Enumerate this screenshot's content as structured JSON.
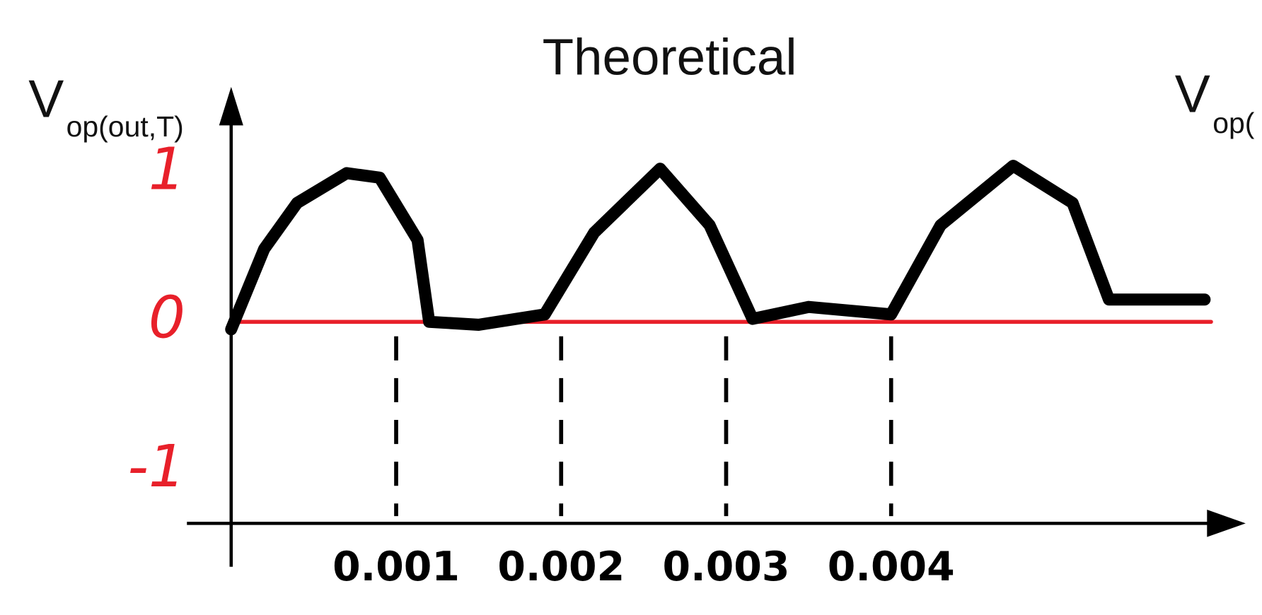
{
  "chart_data": {
    "type": "line",
    "title": "Theoretical",
    "y_label": {
      "main": "V",
      "sub": "op(out,T)"
    },
    "right_label": {
      "main": "V",
      "sub": "op("
    },
    "x": [
      0,
      0.0002,
      0.0004,
      0.0007,
      0.0009,
      0.00113,
      0.0012,
      0.0015,
      0.0019,
      0.0022,
      0.0026,
      0.0029,
      0.00316,
      0.0035,
      0.004,
      0.0043,
      0.00474,
      0.0051,
      0.00532,
      0.0059
    ],
    "values": [
      -0.05,
      0.49,
      0.8,
      1.0,
      0.97,
      0.55,
      0,
      -0.02,
      0.05,
      0.6,
      1.03,
      0.65,
      0.02,
      0.1,
      0.05,
      0.65,
      1.05,
      0.8,
      0.15,
      0.15
    ],
    "color": "#000000",
    "xlim": [
      0,
      0.0059
    ],
    "xticks": [
      0.001,
      0.002,
      0.003,
      0.004
    ],
    "ylim": [
      -1.35,
      1.57
    ],
    "yticks": [
      -1,
      0,
      1
    ],
    "ytick_color": "#e8202a",
    "zero_line_color": "#e8202a",
    "x_grid": "dashed"
  }
}
